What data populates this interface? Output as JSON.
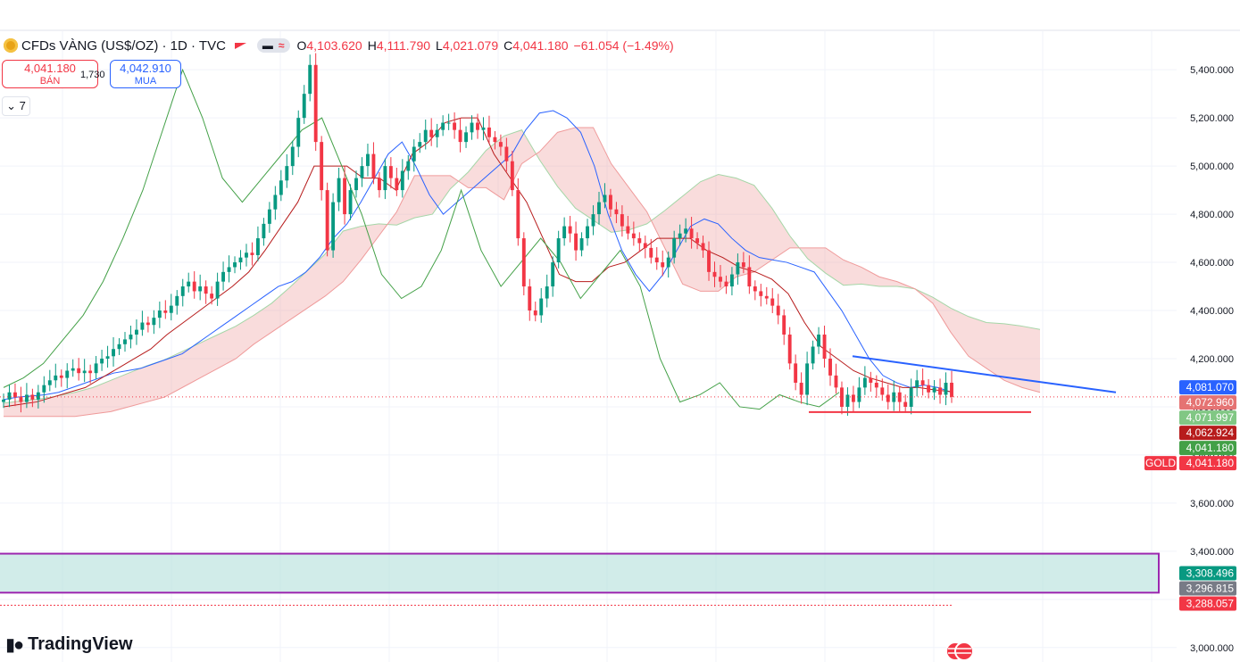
{
  "header": {
    "symbol_title": "CFDs VÀNG (US$/OZ) · 1D · TVC",
    "o_label": "O",
    "o_value": "4,103.620",
    "h_label": "H",
    "h_value": "4,111.790",
    "l_label": "L",
    "l_value": "4,021.079",
    "c_label": "C",
    "c_value": "4,041.180",
    "change": "−61.054 (−1.49%)"
  },
  "trade": {
    "sell_price": "4,041.180",
    "sell_label": "BÁN",
    "spread": "1,730",
    "buy_price": "4,042.910",
    "buy_label": "MUA"
  },
  "indicators_collapse": "7",
  "logo_text": "TradingView",
  "colors": {
    "up": "#089981",
    "down": "#f23645",
    "conversion": "#2962ff",
    "base": "#b71c1c",
    "lagging": "#43a047",
    "cloud_up": "#a5d6a7",
    "cloud_down": "#ef9a9a",
    "zone": "#9c27b0"
  },
  "chart_data": {
    "type": "candlestick",
    "symbol": "GOLD",
    "ylim": [
      2940,
      5560
    ],
    "y_ticks": [
      3000,
      3200,
      3400,
      3600,
      3800,
      4000,
      4200,
      4400,
      4600,
      4800,
      5000,
      5200,
      5400
    ],
    "price_labels": [
      {
        "value": 4081.07,
        "label": "4,081.070",
        "color": "#2962ff"
      },
      {
        "value": 4072.96,
        "label": "4,072.960",
        "color": "#e57373"
      },
      {
        "value": 4071.997,
        "label": "4,071.997",
        "color": "#81c784"
      },
      {
        "value": 4062.924,
        "label": "4,062.924",
        "color": "#b71c1c"
      },
      {
        "value": 4041.18,
        "label": "4,041.180",
        "color": "#43a047"
      },
      {
        "value": 4041.18,
        "label": "4,041.180",
        "color": "#f23645",
        "symbol_tag": "GOLD"
      },
      {
        "value": 3308.496,
        "label": "3,308.496",
        "color": "#089981"
      },
      {
        "value": 3296.815,
        "label": "3,296.815",
        "color": "#787b86"
      },
      {
        "value": 3288.057,
        "label": "3,288.057",
        "color": "#f23645"
      }
    ],
    "close_series": [
      4030,
      4060,
      4040,
      4020,
      4050,
      4030,
      4060,
      4090,
      4110,
      4130,
      4120,
      4150,
      4160,
      4140,
      4150,
      4140,
      4180,
      4200,
      4210,
      4240,
      4260,
      4280,
      4300,
      4320,
      4350,
      4340,
      4370,
      4400,
      4390,
      4420,
      4460,
      4500,
      4520,
      4480,
      4500,
      4470,
      4450,
      4520,
      4560,
      4580,
      4600,
      4620,
      4640,
      4630,
      4700,
      4760,
      4820,
      4880,
      4940,
      5000,
      5080,
      5200,
      5300,
      5420,
      5100,
      4900,
      4650,
      4850,
      4950,
      4800,
      4900,
      4950,
      5000,
      5050,
      4950,
      4900,
      5000,
      4950,
      4900,
      4980,
      5020,
      5080,
      5100,
      5150,
      5120,
      5150,
      5180,
      5180,
      5150,
      5100,
      5140,
      5180,
      5150,
      5160,
      5120,
      5100,
      5080,
      5020,
      4900,
      4700,
      4500,
      4400,
      4380,
      4450,
      4500,
      4600,
      4700,
      4750,
      4720,
      4650,
      4700,
      4750,
      4800,
      4850,
      4880,
      4820,
      4800,
      4750,
      4720,
      4700,
      4680,
      4660,
      4620,
      4600,
      4580,
      4620,
      4700,
      4720,
      4740,
      4700,
      4680,
      4650,
      4560,
      4540,
      4520,
      4500,
      4550,
      4600,
      4580,
      4500,
      4480,
      4460,
      4450,
      4420,
      4380,
      4300,
      4180,
      4100,
      4050,
      4180,
      4250,
      4300,
      4200,
      4130,
      4080,
      4000,
      4050,
      4020,
      4080,
      4120,
      4100,
      4080,
      4050,
      4020,
      4060,
      4020,
      4000,
      4080,
      4110,
      4090,
      4060,
      4080,
      4050,
      4100,
      4041
    ],
    "conversion_line": [
      4030,
      4040,
      4045,
      4050,
      4060,
      4080,
      4100,
      4120,
      4140,
      4150,
      4160,
      4180,
      4200,
      4220,
      4260,
      4300,
      4340,
      4380,
      4420,
      4460,
      4500,
      4520,
      4560,
      4620,
      4700,
      4760,
      4850,
      4950,
      5050,
      5100,
      5000,
      4880,
      4800,
      4850,
      4900,
      4950,
      5000,
      5050,
      5150,
      5220,
      5230,
      5200,
      5140,
      5000,
      4800,
      4650,
      4550,
      4480,
      4550,
      4650,
      4750,
      4780,
      4760,
      4700,
      4650,
      4620,
      4610,
      4600,
      4580,
      4560,
      4480,
      4400,
      4300,
      4200,
      4130,
      4100,
      4080,
      4090,
      4080,
      4060
    ],
    "base_line": [
      4000,
      4010,
      4020,
      4040,
      4060,
      4080,
      4120,
      4160,
      4200,
      4240,
      4300,
      4350,
      4400,
      4450,
      4500,
      4560,
      4650,
      4750,
      4850,
      5000,
      5000,
      5000,
      4950,
      4950,
      4900,
      5050,
      5100,
      5180,
      5200,
      5200,
      5050,
      4950,
      4850,
      4700,
      4550,
      4520,
      4520,
      4580,
      4600,
      4650,
      4700,
      4700,
      4700,
      4650,
      4620,
      4580,
      4560,
      4530,
      4470,
      4350,
      4250,
      4200,
      4150,
      4120,
      4100,
      4080,
      4080,
      4070,
      4063
    ],
    "lagging_span": [
      4080,
      4120,
      4180,
      4280,
      4380,
      4520,
      4700,
      4900,
      5150,
      5400,
      5200,
      4950,
      4850,
      4950,
      5050,
      5150,
      5200,
      5000,
      4800,
      4550,
      4450,
      4500,
      4650,
      4900,
      4650,
      4500,
      4600,
      4700,
      4600,
      4450,
      4550,
      4650,
      4500,
      4200,
      4020,
      4050,
      4100,
      4000,
      3990,
      4050,
      4020,
      4000,
      4060
    ]
  }
}
